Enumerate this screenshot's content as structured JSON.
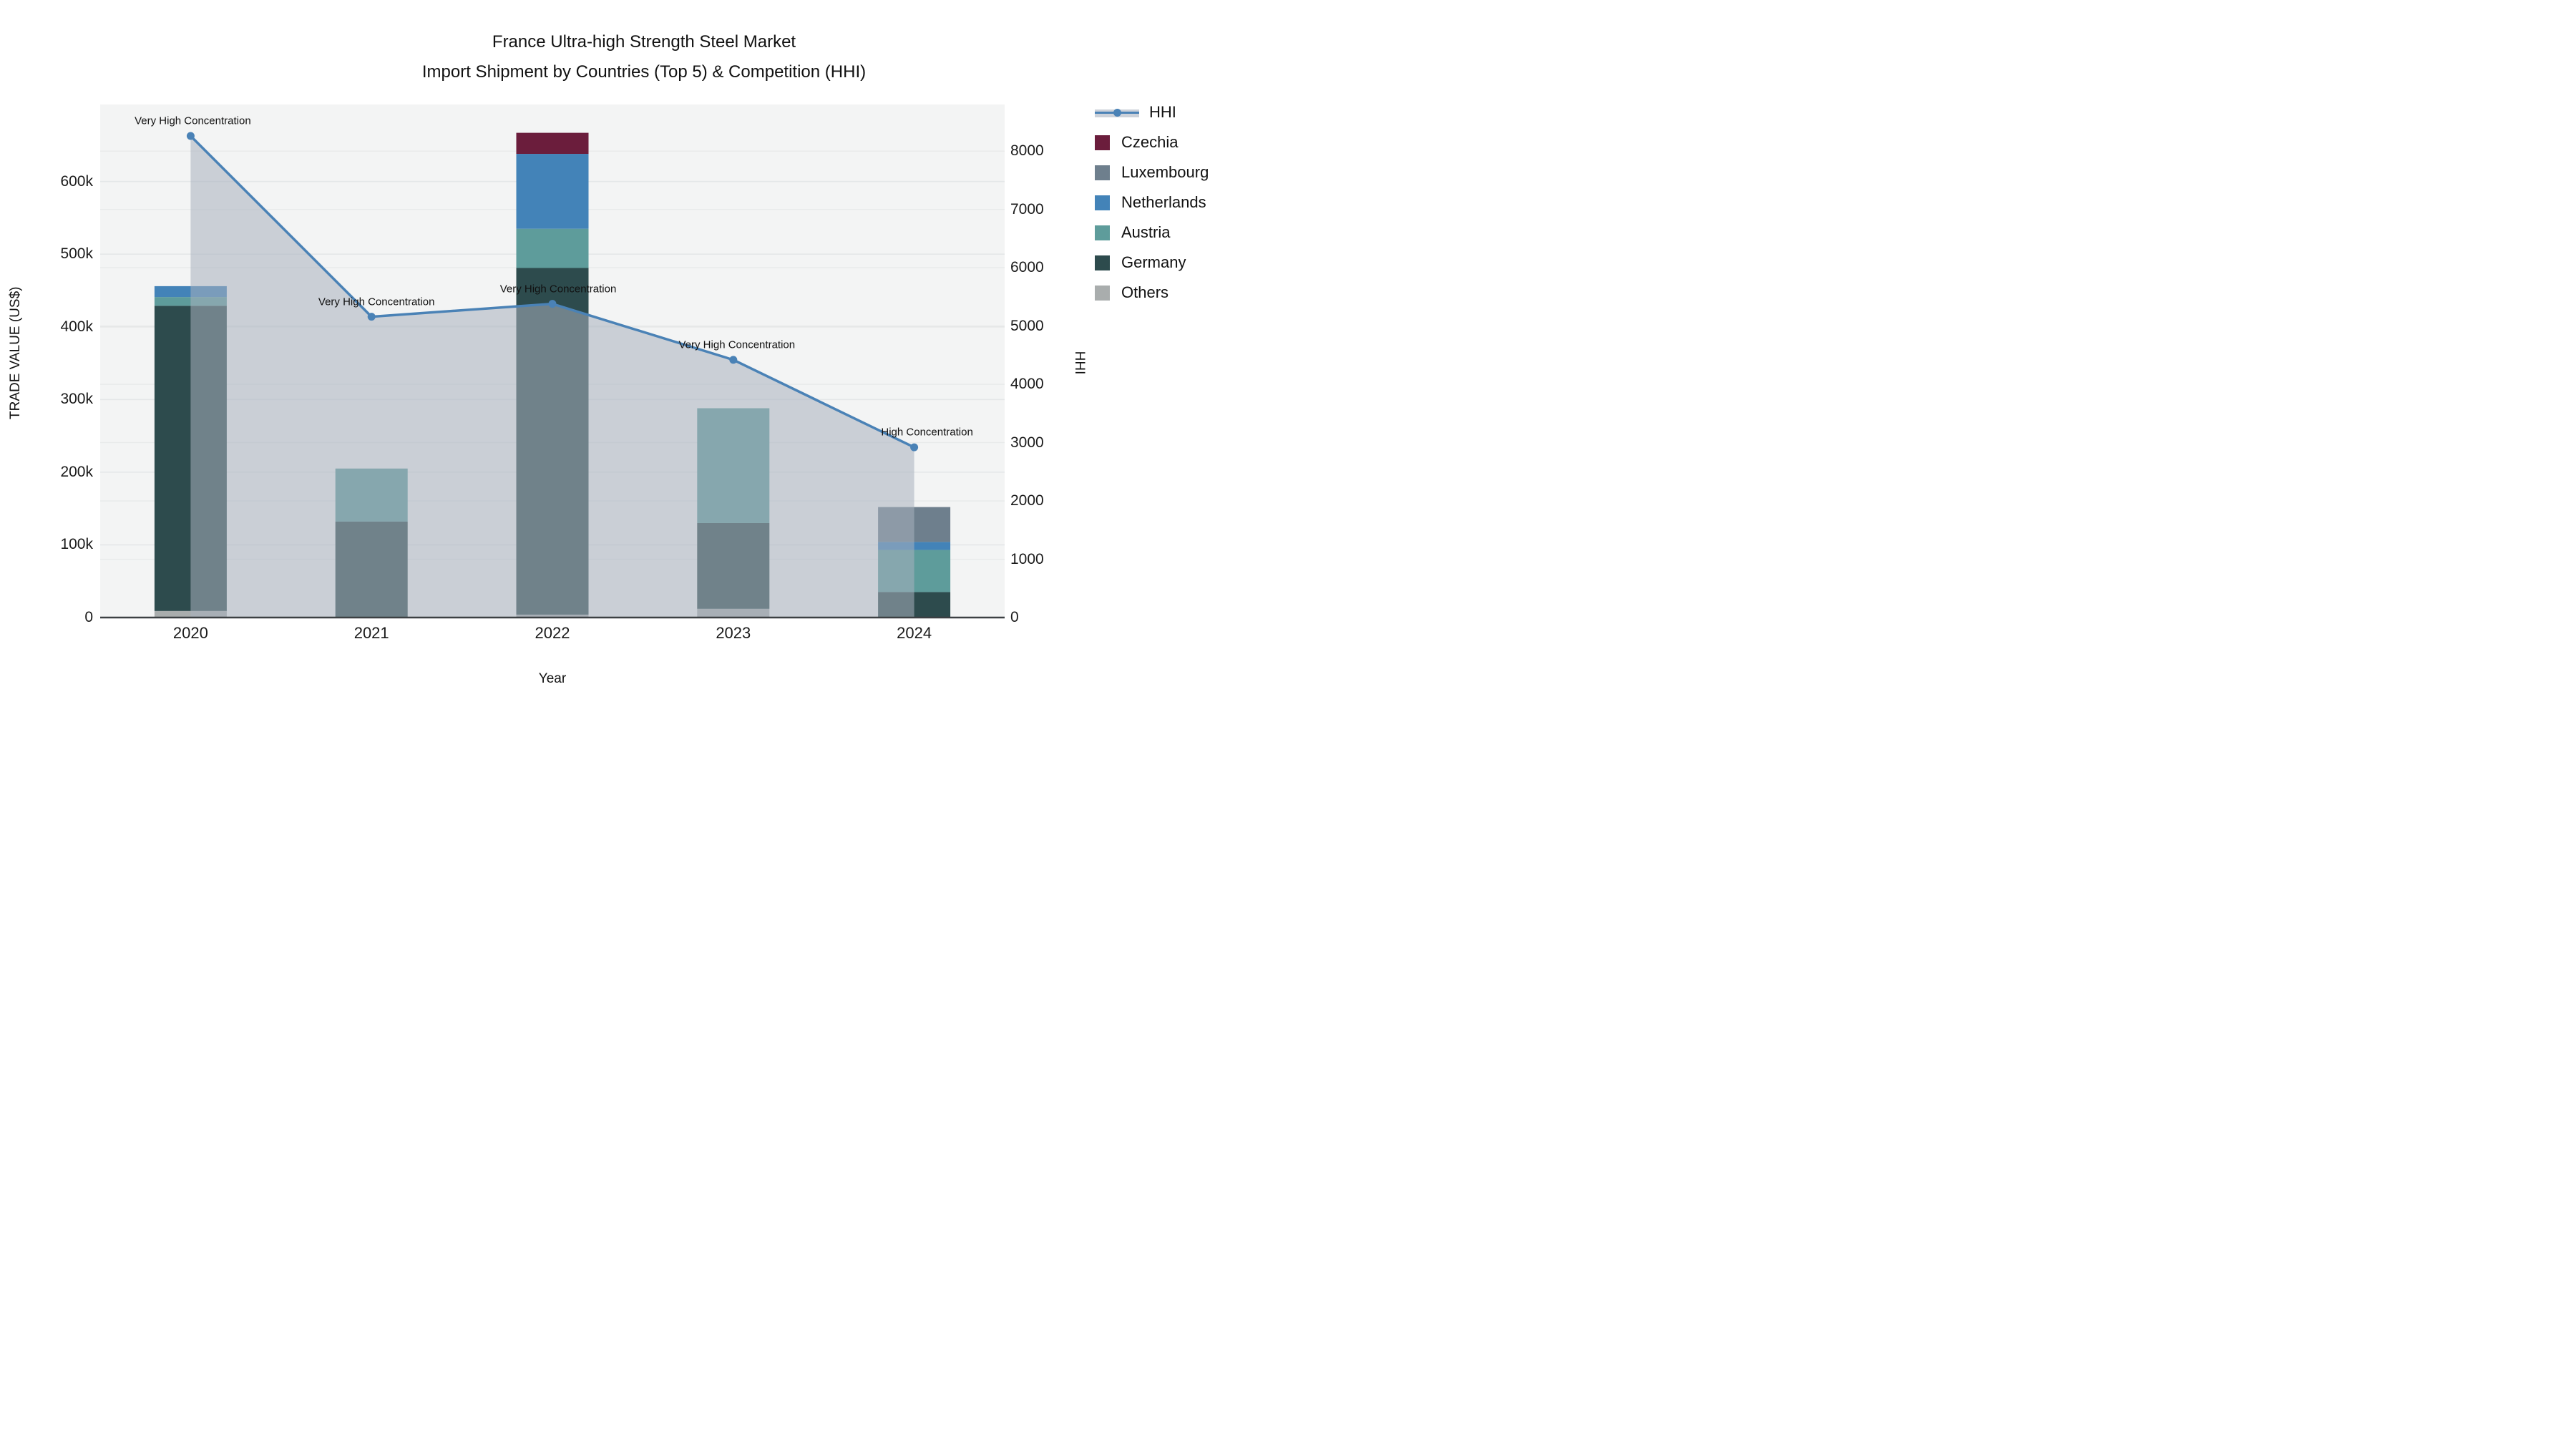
{
  "title": {
    "line1": "France Ultra-high Strength Steel Market",
    "line2": "Import Shipment by Countries (Top 5) & Competition (HHI)"
  },
  "axes": {
    "x_title": "Year",
    "y_left_title": "TRADE VALUE (US$)",
    "y_right_title": "HHI",
    "y_left_ticks": [
      "0",
      "100k",
      "200k",
      "300k",
      "400k",
      "500k",
      "600k"
    ],
    "y_right_ticks": [
      "0",
      "1000",
      "2000",
      "3000",
      "4000",
      "5000",
      "6000",
      "7000",
      "8000"
    ]
  },
  "legend": {
    "hhi_label": "HHI"
  },
  "chart_data": {
    "type": "bar+line",
    "title": "France Ultra-high Strength Steel Market — Import Shipment by Countries (Top 5) & Competition (HHI)",
    "categories": [
      "2020",
      "2021",
      "2022",
      "2023",
      "2024"
    ],
    "bar_unit": "US$",
    "bar_series": [
      {
        "name": "Czechia",
        "color": "#6b1d3c",
        "values": [
          0,
          0,
          29000,
          0,
          0
        ]
      },
      {
        "name": "Luxembourg",
        "color": "#6e7f8d",
        "values": [
          0,
          0,
          0,
          0,
          48000
        ]
      },
      {
        "name": "Netherlands",
        "color": "#4383b8",
        "values": [
          15000,
          0,
          103000,
          0,
          11000
        ]
      },
      {
        "name": "Austria",
        "color": "#5e9c9b",
        "values": [
          12000,
          73000,
          54000,
          158000,
          58000
        ]
      },
      {
        "name": "Germany",
        "color": "#2d4b4d",
        "values": [
          420000,
          132000,
          477000,
          118000,
          35000
        ]
      },
      {
        "name": "Others",
        "color": "#a9adad",
        "values": [
          9000,
          0,
          4000,
          12000,
          0
        ]
      }
    ],
    "stack_order_bottom_to_top": [
      "Others",
      "Germany",
      "Austria",
      "Netherlands",
      "Luxembourg",
      "Czechia"
    ],
    "line_series": {
      "name": "HHI",
      "color": "#4a82b6",
      "area_fill": "rgba(168,176,190,0.55)",
      "values": [
        8260,
        5160,
        5380,
        4420,
        2920
      ]
    },
    "annotations": [
      {
        "year": "2020",
        "text": "Very High Concentration"
      },
      {
        "year": "2021",
        "text": "Very High Concentration"
      },
      {
        "year": "2022",
        "text": "Very High Concentration"
      },
      {
        "year": "2023",
        "text": "Very High Concentration"
      },
      {
        "year": "2024",
        "text": "High Concentration"
      }
    ],
    "trade_axis_max": 706000,
    "hhi_axis_max": 8800,
    "trade_gridlines": [
      100000,
      200000,
      300000,
      400000,
      500000,
      600000
    ],
    "hhi_gridlines": [
      1000,
      2000,
      3000,
      4000,
      5000,
      6000,
      7000,
      8000
    ],
    "grid": true,
    "legend_position": "right",
    "plot_background": "#f3f4f4"
  }
}
